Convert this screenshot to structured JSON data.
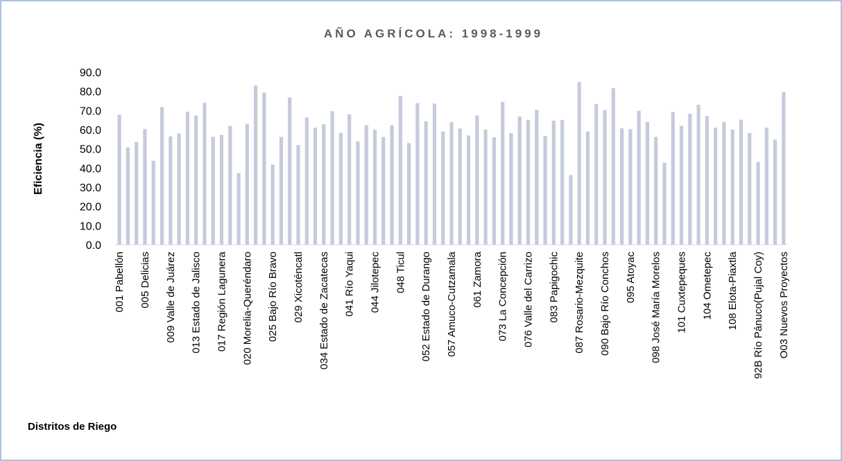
{
  "chart_data": {
    "type": "bar",
    "title": "AÑO AGRÍCOLA:  1998-1999",
    "x_label": "Distritos de Riego",
    "y_label": "Eficiencia (%)",
    "color": "#c5cbdc",
    "categories": [
      "001 Pabellón",
      null,
      null,
      "005 Delicias",
      null,
      null,
      "009 Valle de Juárez",
      null,
      null,
      "013 Estado de Jalisco",
      null,
      null,
      "017 Región Lagunera",
      null,
      null,
      "020 Morelia-Queréndaro",
      null,
      null,
      "025 Bajo Río Bravo",
      null,
      null,
      "029 Xicoténcatl",
      null,
      null,
      "034 Estado de Zacatecas",
      null,
      null,
      "041 Río Yaqui",
      null,
      null,
      "044 Jilotepec",
      null,
      null,
      "048 Ticul",
      null,
      null,
      "052 Estado de Durango",
      null,
      null,
      "057 Amuco-Cutzamala",
      null,
      null,
      "061 Zamora",
      null,
      null,
      "073 La Concepción",
      null,
      null,
      "076 Valle del Carrizo",
      null,
      null,
      "083 Papigochic",
      null,
      null,
      "087 Rosario-Mezquite",
      null,
      null,
      "090 Bajo Río Conchos",
      null,
      null,
      "095 Atoyac",
      null,
      null,
      "098 José María Morelos",
      null,
      null,
      "101 Cuxtepeques",
      null,
      null,
      "104 Ometepec",
      null,
      null,
      "108 Elota-Piaxtla",
      null,
      null,
      "92B Río Pánuco(Pujal Coy)",
      null,
      null,
      "O03 Nuevos Proyectos"
    ],
    "values": [
      67.7,
      50.8,
      53.6,
      60.3,
      43.8,
      71.8,
      56.5,
      58,
      69.3,
      67.3,
      74,
      56.3,
      57.2,
      62,
      37.3,
      63,
      83,
      79.3,
      41.8,
      56.2,
      76.8,
      52,
      66.4,
      61,
      62.8,
      69.6,
      58.3,
      68,
      53.8,
      62.3,
      60,
      56.2,
      62.3,
      77.6,
      53,
      73.8,
      64.3,
      73.6,
      59,
      64,
      60.6,
      57,
      67.4,
      60,
      56,
      74.5,
      58.2,
      66.8,
      65,
      70.3,
      56.7,
      64.7,
      65,
      36.3,
      84.8,
      59,
      73.4,
      70.2,
      81.6,
      60.7,
      60.2,
      69.8,
      64,
      56.2,
      42.8,
      69.1,
      62,
      68.3,
      73,
      67.1,
      61,
      64,
      60,
      65.2,
      58.2,
      43.2,
      61,
      54.8,
      79.6
    ],
    "ylim": [
      0,
      90
    ],
    "yticks": [
      {
        "value": 0,
        "label": "0.0"
      },
      {
        "value": 10,
        "label": "10.0"
      },
      {
        "value": 20,
        "label": "20.0"
      },
      {
        "value": 30,
        "label": "30.0"
      },
      {
        "value": 40,
        "label": "40.0"
      },
      {
        "value": 50,
        "label": "50.0"
      },
      {
        "value": 60,
        "label": "60.0"
      },
      {
        "value": 70,
        "label": "70.0"
      },
      {
        "value": 80,
        "label": "80.0"
      },
      {
        "value": 90,
        "label": "90.0"
      }
    ],
    "grid": false
  }
}
